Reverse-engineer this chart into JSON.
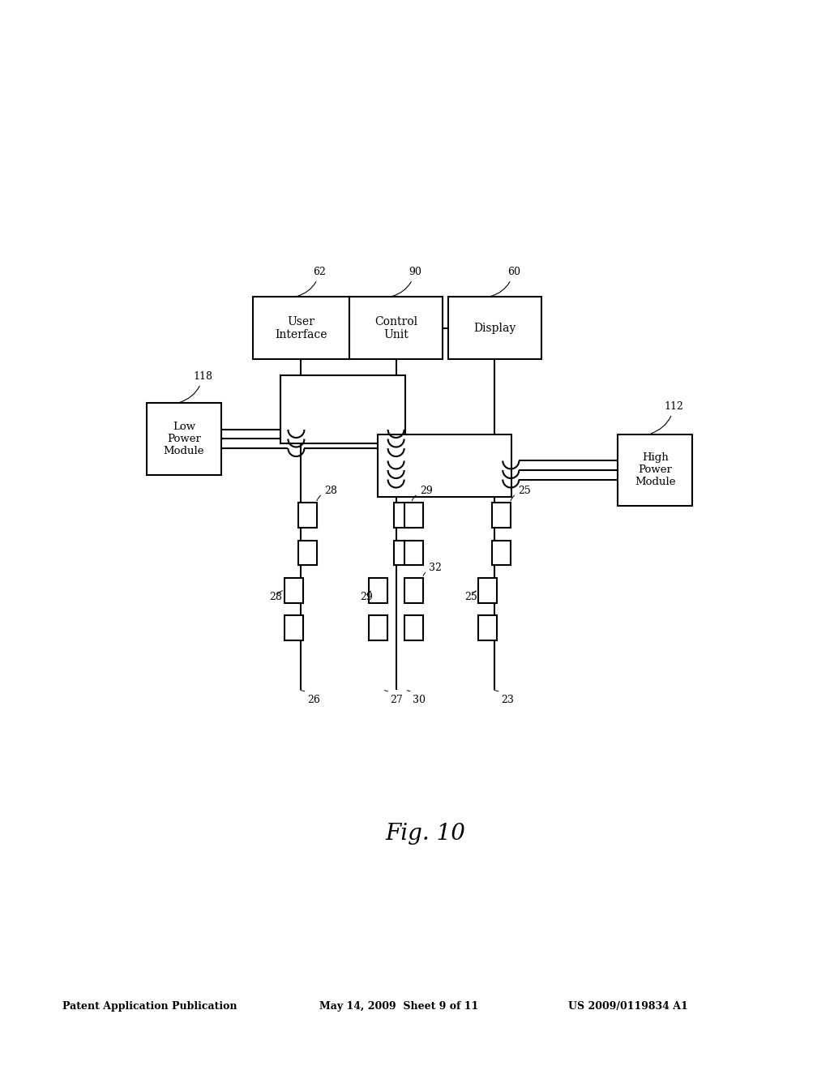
{
  "bg_color": "#ffffff",
  "header_left": "Patent Application Publication",
  "header_mid": "May 14, 2009  Sheet 9 of 11",
  "header_right": "US 2009/0119834 A1",
  "fig_label": "Fig. 10",
  "lw": 1.5
}
